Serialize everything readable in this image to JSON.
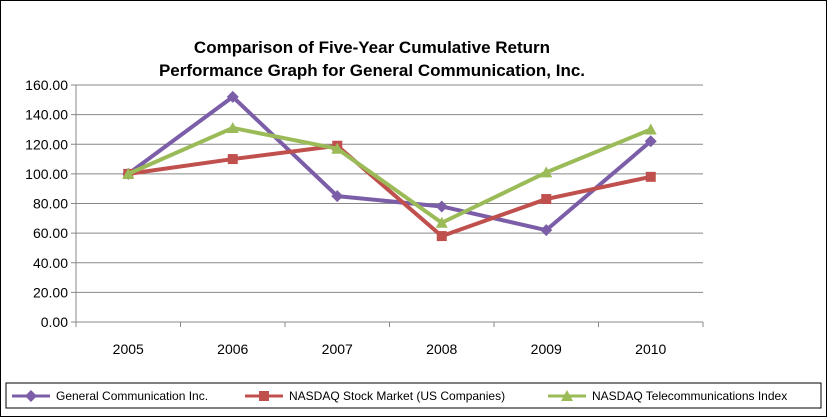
{
  "chart_data": {
    "type": "line",
    "title_line1": "Comparison of Five-Year Cumulative Return",
    "title_line2": "Performance Graph for General Communication, Inc.",
    "categories": [
      "2005",
      "2006",
      "2007",
      "2008",
      "2009",
      "2010"
    ],
    "ylim": [
      0,
      160
    ],
    "yticks": [
      "0.00",
      "20.00",
      "40.00",
      "60.00",
      "80.00",
      "100.00",
      "120.00",
      "140.00",
      "160.00"
    ],
    "grid": true,
    "legend_position": "bottom",
    "series": [
      {
        "name": "General Communication Inc.",
        "color": "#7b5ea7",
        "marker": "diamond",
        "values": [
          100,
          152,
          85,
          78,
          62,
          122
        ]
      },
      {
        "name": "NASDAQ Stock Market (US Companies)",
        "color": "#c0504d",
        "marker": "square",
        "values": [
          100,
          110,
          119,
          58,
          83,
          98
        ]
      },
      {
        "name": "NASDAQ Telecommunications Index",
        "color": "#9bbb59",
        "marker": "triangle",
        "values": [
          100,
          131,
          117,
          67,
          101,
          130
        ]
      }
    ]
  }
}
